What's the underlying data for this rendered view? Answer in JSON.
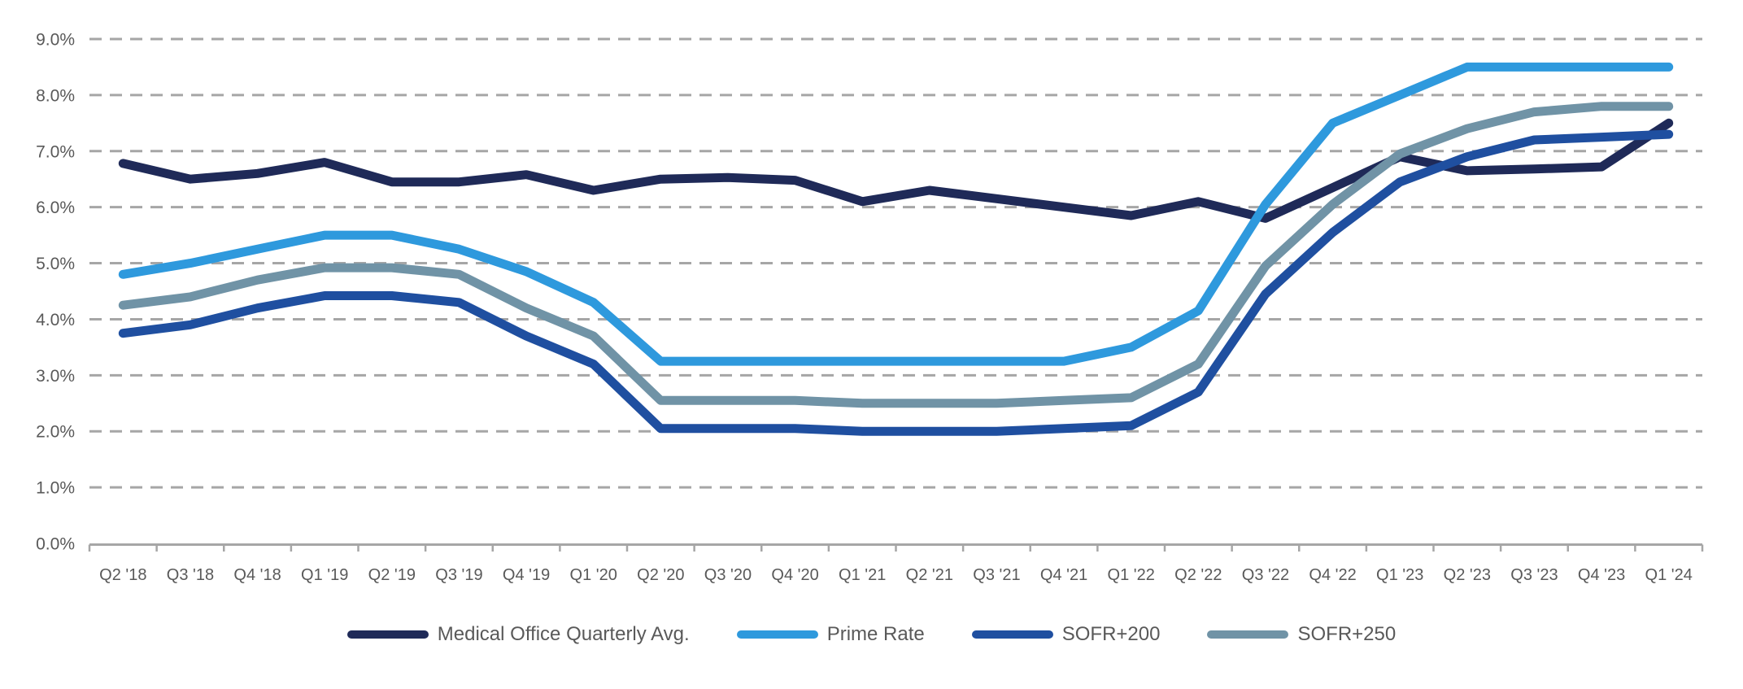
{
  "chart_data": {
    "type": "line",
    "title": "",
    "xlabel": "",
    "ylabel": "",
    "categories": [
      "Q2 '18",
      "Q3 '18",
      "Q4 '18",
      "Q1 '19",
      "Q2 '19",
      "Q3 '19",
      "Q4 '19",
      "Q1 '20",
      "Q2 '20",
      "Q3 '20",
      "Q4 '20",
      "Q1 '21",
      "Q2 '21",
      "Q3 '21",
      "Q4 '21",
      "Q1 '22",
      "Q2 '22",
      "Q3 '22",
      "Q4 '22",
      "Q1 '23",
      "Q2 '23",
      "Q3 '23",
      "Q4 '23",
      "Q1 '24"
    ],
    "series": [
      {
        "name": "Medical Office Quarterly Avg.",
        "color": "#1f2a58",
        "values": [
          6.78,
          6.5,
          6.6,
          6.8,
          6.45,
          6.45,
          6.58,
          6.3,
          6.5,
          6.53,
          6.48,
          6.1,
          6.3,
          6.15,
          6.0,
          5.85,
          6.1,
          5.8,
          6.35,
          6.9,
          6.65,
          6.68,
          6.72,
          7.5
        ]
      },
      {
        "name": "Prime Rate",
        "color": "#2e99dd",
        "values": [
          4.8,
          5.0,
          5.25,
          5.5,
          5.5,
          5.25,
          4.85,
          4.3,
          3.25,
          3.25,
          3.25,
          3.25,
          3.25,
          3.25,
          3.25,
          3.5,
          4.15,
          6.05,
          7.5,
          8.0,
          8.5,
          8.5,
          8.5,
          8.5
        ]
      },
      {
        "name": "SOFR+200",
        "color": "#1f4fa0",
        "values": [
          3.75,
          3.9,
          4.2,
          4.42,
          4.42,
          4.3,
          3.7,
          3.2,
          2.05,
          2.05,
          2.05,
          2.0,
          2.0,
          2.0,
          2.05,
          2.1,
          2.7,
          4.45,
          5.55,
          6.45,
          6.9,
          7.2,
          7.25,
          7.3
        ]
      },
      {
        "name": "SOFR+250",
        "color": "#7093a6",
        "values": [
          4.25,
          4.4,
          4.7,
          4.92,
          4.92,
          4.8,
          4.2,
          3.7,
          2.55,
          2.55,
          2.55,
          2.5,
          2.5,
          2.5,
          2.55,
          2.6,
          3.2,
          4.95,
          6.05,
          6.95,
          7.4,
          7.7,
          7.8,
          7.8
        ]
      }
    ],
    "y_axis": {
      "min": 0,
      "max": 9,
      "step": 1,
      "tick_labels": [
        "0.0%",
        "1.0%",
        "2.0%",
        "3.0%",
        "4.0%",
        "5.0%",
        "6.0%",
        "7.0%",
        "8.0%",
        "9.0%"
      ],
      "grid": "dashed"
    },
    "legend_position": "bottom"
  },
  "colors": {
    "background": "#ffffff",
    "gridline": "#a6a6a6",
    "axis_line": "#a6a6a6",
    "tick_text": "#595959",
    "legend_text": "#595959"
  }
}
